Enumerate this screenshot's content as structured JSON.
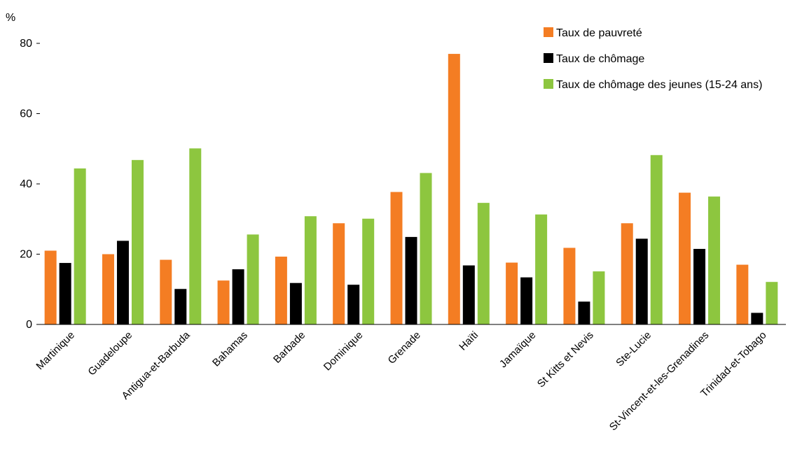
{
  "chart_data": {
    "type": "bar",
    "ylabel": "%",
    "ylim": [
      0,
      80
    ],
    "yticks": [
      0,
      20,
      40,
      60,
      80
    ],
    "grid": false,
    "legend_position": "top-right",
    "categories": [
      "Martinique",
      "Guadeloupe",
      "Antigua-et-Barbuda",
      "Bahamas",
      "Barbade",
      "Dominique",
      "Grenade",
      "Haïti",
      "Jamaïque",
      "St Kitts et Nevis",
      "Ste-Lucie",
      "St-Vincent-et-les-Grenadines",
      "Trinidad-et-Tobago"
    ],
    "series": [
      {
        "name": "Taux de pauvreté",
        "color": "#f47d23",
        "values": [
          21.0,
          20.0,
          18.4,
          12.5,
          19.3,
          28.8,
          37.7,
          77.0,
          17.6,
          21.8,
          28.8,
          37.5,
          17.0
        ]
      },
      {
        "name": "Taux de chômage",
        "color": "#000000",
        "values": [
          17.5,
          23.8,
          10.1,
          15.7,
          11.8,
          11.3,
          24.9,
          16.8,
          13.4,
          6.5,
          24.4,
          21.5,
          3.3
        ]
      },
      {
        "name": "Taux de chômage des jeunes (15-24 ans)",
        "color": "#8dc63f",
        "values": [
          44.4,
          46.8,
          50.1,
          25.6,
          30.8,
          30.1,
          43.1,
          34.6,
          31.3,
          15.1,
          48.2,
          36.4,
          12.1
        ]
      }
    ]
  }
}
